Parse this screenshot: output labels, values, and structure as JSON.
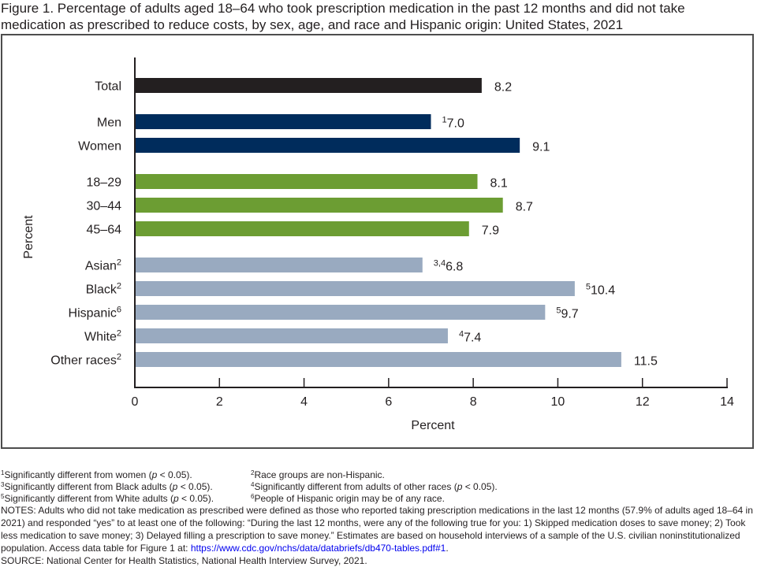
{
  "title_line1": "Figure 1. Percentage of adults aged 18–64 who took prescription medication in the past 12 months and did not take",
  "title_line2": "medication as prescribed to reduce costs, by sex, age, and race and Hispanic origin: United States, 2021",
  "chart_data": {
    "type": "bar",
    "orientation": "horizontal",
    "title": "Percentage of adults aged 18–64 who took prescription medication in the past 12 months and did not take medication as prescribed to reduce costs, by sex, age, and race and Hispanic origin: United States, 2021",
    "xlabel": "Percent",
    "ylabel": "Percent",
    "xlim": [
      0,
      14
    ],
    "xticks": [
      0,
      2,
      4,
      6,
      8,
      10,
      12,
      14
    ],
    "grid": false,
    "colors": {
      "total": "#231f20",
      "sex": "#002c5c",
      "age": "#6c9d33",
      "race": "#99aac0"
    },
    "groups": [
      {
        "name": "Total",
        "color_key": "total",
        "bars": [
          {
            "label": "Total",
            "label_sup": "",
            "value": 8.2,
            "value_label": "8.2",
            "value_sup": ""
          }
        ]
      },
      {
        "name": "Sex",
        "color_key": "sex",
        "bars": [
          {
            "label": "Men",
            "label_sup": "",
            "value": 7.0,
            "value_label": "7.0",
            "value_sup": "1"
          },
          {
            "label": "Women",
            "label_sup": "",
            "value": 9.1,
            "value_label": "9.1",
            "value_sup": ""
          }
        ]
      },
      {
        "name": "Age",
        "color_key": "age",
        "bars": [
          {
            "label": "18–29",
            "label_sup": "",
            "value": 8.1,
            "value_label": "8.1",
            "value_sup": ""
          },
          {
            "label": "30–44",
            "label_sup": "",
            "value": 8.7,
            "value_label": "8.7",
            "value_sup": ""
          },
          {
            "label": "45–64",
            "label_sup": "",
            "value": 7.9,
            "value_label": "7.9",
            "value_sup": ""
          }
        ]
      },
      {
        "name": "Race and Hispanic origin",
        "color_key": "race",
        "bars": [
          {
            "label": "Asian",
            "label_sup": "2",
            "value": 6.8,
            "value_label": "6.8",
            "value_sup": "3,4"
          },
          {
            "label": "Black",
            "label_sup": "2",
            "value": 10.4,
            "value_label": "10.4",
            "value_sup": "5"
          },
          {
            "label": "Hispanic",
            "label_sup": "6",
            "value": 9.7,
            "value_label": "9.7",
            "value_sup": "5"
          },
          {
            "label": "White",
            "label_sup": "2",
            "value": 7.4,
            "value_label": "7.4",
            "value_sup": "4"
          },
          {
            "label": "Other races",
            "label_sup": "2",
            "value": 11.5,
            "value_label": "11.5",
            "value_sup": ""
          }
        ]
      }
    ]
  },
  "footnotes": [
    {
      "sup": "1",
      "text_before": "Significantly different from women (",
      "italic": "p",
      "text_after": " < 0.05)."
    },
    {
      "sup": "2",
      "text_before": "Race groups are non-Hispanic.",
      "italic": "",
      "text_after": ""
    },
    {
      "sup": "3",
      "text_before": "Significantly different from Black adults (",
      "italic": "p",
      "text_after": " < 0.05)."
    },
    {
      "sup": "4",
      "text_before": "Significantly different from adults of other races (",
      "italic": "p",
      "text_after": " < 0.05)."
    },
    {
      "sup": "5",
      "text_before": "Significantly different from White adults (",
      "italic": "p",
      "text_after": " < 0.05)."
    },
    {
      "sup": "6",
      "text_before": "People of Hispanic origin may be of any race.",
      "italic": "",
      "text_after": ""
    }
  ],
  "notes": {
    "text": "NOTES: Adults who did not take medication as prescribed were defined as those who reported taking prescription medications in the last 12 months (57.9% of adults aged 18–64 in 2021) and responded “yes” to at least one of the following: “During the last 12 months, were any of the following true for you: 1) Skipped medication doses to save money; 2) Took less medication to save money; 3) Delayed filling a prescription to save money.” Estimates are based on household interviews of a sample of the U.S. civilian noninstitutionalized population. Access data table for Figure 1 at: ",
    "link_text": "https://www.cdc.gov/nchs/data/databriefs/db470-tables.pdf#1",
    "after_link": ".",
    "source": "SOURCE: National Center for Health Statistics, National Health Interview Survey, 2021."
  }
}
